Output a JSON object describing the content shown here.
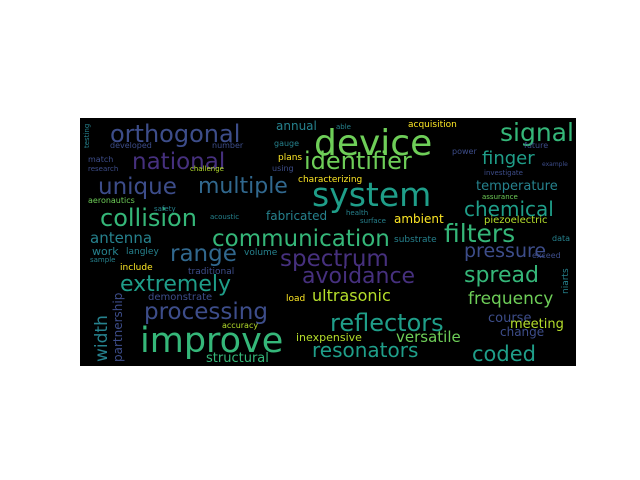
{
  "palette": {
    "purple": "#46307e",
    "indigo": "#3d4d8a",
    "blue": "#31688e",
    "teal": "#26828e",
    "sea": "#1f9e89",
    "green": "#35b779",
    "lime": "#6ece58",
    "yellow": "#b5de2b",
    "gold": "#fde725",
    "dark": "#2a2a4a"
  },
  "words": [
    {
      "t": "system",
      "c": "sea"
    },
    {
      "t": "device",
      "c": "lime"
    },
    {
      "t": "improve",
      "c": "green"
    },
    {
      "t": "communication",
      "c": "green"
    },
    {
      "t": "identifier",
      "c": "lime"
    },
    {
      "t": "signal",
      "c": "green"
    },
    {
      "t": "orthogonal",
      "c": "indigo"
    },
    {
      "t": "national",
      "c": "purple"
    },
    {
      "t": "unique",
      "c": "indigo"
    },
    {
      "t": "multiple",
      "c": "blue"
    },
    {
      "t": "collision",
      "c": "green"
    },
    {
      "t": "spectrum",
      "c": "purple"
    },
    {
      "t": "avoidance",
      "c": "purple"
    },
    {
      "t": "processing",
      "c": "indigo"
    },
    {
      "t": "extremely",
      "c": "sea"
    },
    {
      "t": "reflectors",
      "c": "sea"
    },
    {
      "t": "filters",
      "c": "green"
    },
    {
      "t": "spread",
      "c": "green"
    },
    {
      "t": "range",
      "c": "blue"
    },
    {
      "t": "resonators",
      "c": "sea"
    },
    {
      "t": "coded",
      "c": "sea"
    },
    {
      "t": "chemical",
      "c": "sea"
    },
    {
      "t": "pressure",
      "c": "indigo"
    },
    {
      "t": "finger",
      "c": "sea"
    },
    {
      "t": "frequency",
      "c": "lime"
    },
    {
      "t": "ultrasonic",
      "c": "yellow"
    },
    {
      "t": "width",
      "c": "teal"
    },
    {
      "t": "antenna",
      "c": "teal"
    },
    {
      "t": "temperature",
      "c": "teal"
    },
    {
      "t": "fabricated",
      "c": "teal"
    },
    {
      "t": "versatile",
      "c": "lime"
    },
    {
      "t": "inexpensive",
      "c": "yellow"
    },
    {
      "t": "course",
      "c": "indigo"
    },
    {
      "t": "change",
      "c": "indigo"
    },
    {
      "t": "meeting",
      "c": "yellow"
    },
    {
      "t": "structural",
      "c": "green"
    },
    {
      "t": "demonstrate",
      "c": "indigo"
    },
    {
      "t": "partnership",
      "c": "indigo"
    },
    {
      "t": "annual",
      "c": "teal"
    },
    {
      "t": "ambient",
      "c": "gold"
    },
    {
      "t": "work",
      "c": "teal"
    },
    {
      "t": "piezoelectric",
      "c": "yellow"
    },
    {
      "t": "acquisition",
      "c": "gold"
    },
    {
      "t": "characterizing",
      "c": "gold"
    },
    {
      "t": "langley",
      "c": "teal"
    },
    {
      "t": "traditional",
      "c": "indigo"
    },
    {
      "t": "include",
      "c": "gold"
    },
    {
      "t": "volume",
      "c": "teal"
    },
    {
      "t": "plans",
      "c": "gold"
    },
    {
      "t": "load",
      "c": "gold"
    },
    {
      "t": "substrate",
      "c": "teal"
    },
    {
      "t": "accuracy",
      "c": "yellow"
    },
    {
      "t": "aeronautics",
      "c": "lime"
    },
    {
      "t": "developed",
      "c": "indigo"
    },
    {
      "t": "number",
      "c": "indigo"
    },
    {
      "t": "match",
      "c": "indigo"
    },
    {
      "t": "power",
      "c": "indigo"
    },
    {
      "t": "future",
      "c": "indigo"
    },
    {
      "t": "investigate",
      "c": "indigo"
    },
    {
      "t": "exceed",
      "c": "indigo"
    },
    {
      "t": "data",
      "c": "teal"
    },
    {
      "t": "using",
      "c": "indigo"
    },
    {
      "t": "gauge",
      "c": "teal"
    },
    {
      "t": "acoustic",
      "c": "teal"
    },
    {
      "t": "sample",
      "c": "teal"
    },
    {
      "t": "challenge",
      "c": "yellow"
    },
    {
      "t": "able",
      "c": "teal"
    },
    {
      "t": "health",
      "c": "teal"
    },
    {
      "t": "assurance",
      "c": "lime"
    },
    {
      "t": "research",
      "c": "indigo"
    },
    {
      "t": "safety",
      "c": "teal"
    },
    {
      "t": "testing",
      "c": "teal"
    },
    {
      "t": "niarts",
      "c": "teal"
    },
    {
      "t": "surface",
      "c": "teal"
    },
    {
      "t": "example",
      "c": "indigo"
    }
  ]
}
